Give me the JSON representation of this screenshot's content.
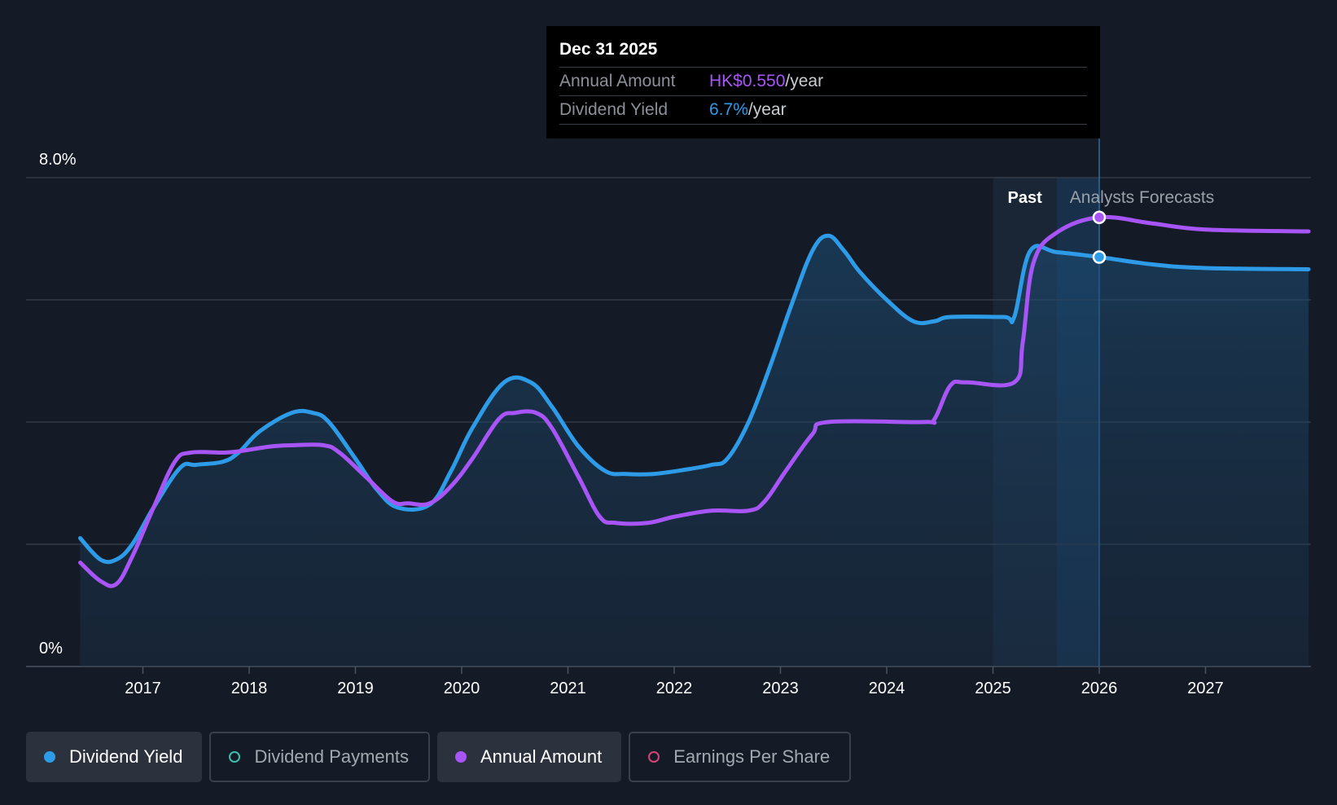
{
  "tooltip": {
    "date": "Dec 31 2025",
    "rows": [
      {
        "key": "Annual Amount",
        "value": "HK$0.550",
        "unit": "/year"
      },
      {
        "key": "Dividend Yield",
        "value": "6.7%",
        "unit": "/year"
      }
    ]
  },
  "regions": {
    "past_label": "Past",
    "forecast_label": "Analysts Forecasts"
  },
  "legend": [
    {
      "label": "Dividend Yield",
      "color": "#2d9be8",
      "active": true
    },
    {
      "label": "Dividend Payments",
      "color": "#3bbfb0",
      "active": false
    },
    {
      "label": "Annual Amount",
      "color": "#a855f7",
      "active": true
    },
    {
      "label": "Earnings Per Share",
      "color": "#d2457a",
      "active": false
    }
  ],
  "chart_data": {
    "type": "line",
    "y_axis_labels": [
      "8.0%",
      "0%"
    ],
    "ylim": [
      0,
      8
    ],
    "xlim": [
      2016.0,
      2028.0
    ],
    "x_ticks": [
      "2017",
      "2018",
      "2019",
      "2020",
      "2021",
      "2022",
      "2023",
      "2024",
      "2025",
      "2026",
      "2027"
    ],
    "gridlines": [
      0,
      2,
      4,
      6,
      8
    ],
    "past_forecast_split": 2025.6,
    "selected_x": 2026.0,
    "series": [
      {
        "name": "Dividend Yield",
        "color": "#2d9be8",
        "area": true,
        "points": [
          [
            2016.41,
            2.1
          ],
          [
            2016.6,
            1.75
          ],
          [
            2016.75,
            1.75
          ],
          [
            2016.9,
            2.0
          ],
          [
            2017.1,
            2.6
          ],
          [
            2017.35,
            3.25
          ],
          [
            2017.5,
            3.3
          ],
          [
            2017.75,
            3.35
          ],
          [
            2017.9,
            3.5
          ],
          [
            2018.1,
            3.85
          ],
          [
            2018.4,
            4.15
          ],
          [
            2018.6,
            4.15
          ],
          [
            2018.75,
            4.0
          ],
          [
            2019.0,
            3.4
          ],
          [
            2019.2,
            2.9
          ],
          [
            2019.4,
            2.6
          ],
          [
            2019.7,
            2.65
          ],
          [
            2019.9,
            3.2
          ],
          [
            2020.1,
            3.9
          ],
          [
            2020.4,
            4.65
          ],
          [
            2020.65,
            4.65
          ],
          [
            2020.85,
            4.25
          ],
          [
            2021.1,
            3.6
          ],
          [
            2021.35,
            3.2
          ],
          [
            2021.55,
            3.15
          ],
          [
            2021.8,
            3.15
          ],
          [
            2022.1,
            3.22
          ],
          [
            2022.35,
            3.3
          ],
          [
            2022.5,
            3.4
          ],
          [
            2022.7,
            4.0
          ],
          [
            2022.9,
            4.9
          ],
          [
            2023.1,
            5.9
          ],
          [
            2023.3,
            6.8
          ],
          [
            2023.45,
            7.05
          ],
          [
            2023.6,
            6.8
          ],
          [
            2023.75,
            6.45
          ],
          [
            2024.0,
            6.0
          ],
          [
            2024.25,
            5.65
          ],
          [
            2024.45,
            5.65
          ],
          [
            2024.6,
            5.72
          ],
          [
            2025.1,
            5.72
          ],
          [
            2025.2,
            5.72
          ],
          [
            2025.35,
            6.8
          ],
          [
            2025.6,
            6.78
          ],
          [
            2026.0,
            6.7
          ],
          [
            2026.5,
            6.58
          ],
          [
            2027.0,
            6.52
          ],
          [
            2027.97,
            6.5
          ]
        ]
      },
      {
        "name": "Annual Amount",
        "color": "#a855f7",
        "area": false,
        "points": [
          [
            2016.41,
            1.7
          ],
          [
            2016.6,
            1.4
          ],
          [
            2016.75,
            1.35
          ],
          [
            2016.9,
            1.8
          ],
          [
            2017.1,
            2.6
          ],
          [
            2017.3,
            3.35
          ],
          [
            2017.45,
            3.5
          ],
          [
            2017.75,
            3.5
          ],
          [
            2017.9,
            3.52
          ],
          [
            2018.2,
            3.6
          ],
          [
            2018.4,
            3.62
          ],
          [
            2018.7,
            3.62
          ],
          [
            2018.85,
            3.5
          ],
          [
            2019.1,
            3.1
          ],
          [
            2019.35,
            2.7
          ],
          [
            2019.5,
            2.67
          ],
          [
            2019.7,
            2.67
          ],
          [
            2019.9,
            2.95
          ],
          [
            2020.1,
            3.4
          ],
          [
            2020.35,
            4.05
          ],
          [
            2020.5,
            4.15
          ],
          [
            2020.7,
            4.15
          ],
          [
            2020.85,
            3.9
          ],
          [
            2021.1,
            3.1
          ],
          [
            2021.3,
            2.45
          ],
          [
            2021.45,
            2.35
          ],
          [
            2021.75,
            2.35
          ],
          [
            2022.0,
            2.45
          ],
          [
            2022.35,
            2.55
          ],
          [
            2022.7,
            2.55
          ],
          [
            2022.85,
            2.7
          ],
          [
            2023.05,
            3.2
          ],
          [
            2023.3,
            3.8
          ],
          [
            2023.45,
            4.0
          ],
          [
            2024.35,
            4.0
          ],
          [
            2024.45,
            4.05
          ],
          [
            2024.6,
            4.6
          ],
          [
            2024.75,
            4.65
          ],
          [
            2025.2,
            4.65
          ],
          [
            2025.28,
            5.3
          ],
          [
            2025.38,
            6.6
          ],
          [
            2025.6,
            7.1
          ],
          [
            2026.0,
            7.35
          ],
          [
            2026.5,
            7.25
          ],
          [
            2027.0,
            7.15
          ],
          [
            2027.97,
            7.12
          ]
        ]
      }
    ],
    "markers": [
      {
        "series": "Annual Amount",
        "x": 2026.0,
        "y": 7.35
      },
      {
        "series": "Dividend Yield",
        "x": 2026.0,
        "y": 6.7
      }
    ]
  }
}
